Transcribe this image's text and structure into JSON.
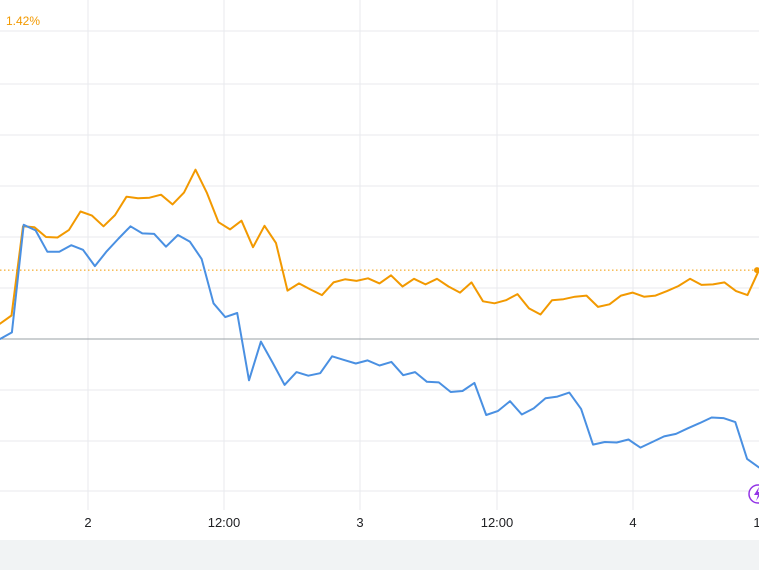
{
  "chart_data": {
    "type": "line",
    "top_value_label": "1.42%",
    "x_ticks": [
      "2",
      "12:00",
      "3",
      "12:00",
      "4",
      "1"
    ],
    "baseline_value": 0,
    "grid": true,
    "colors": {
      "orange": "#F29900",
      "blue": "#4A90E2",
      "grid": "#E8EAED",
      "baseline": "#9AA0A6",
      "marker": "#9334E6"
    },
    "marker_icon": "event-marker-icon",
    "series": [
      {
        "color": "#F29900",
        "values": [
          0.3,
          0.46,
          2.21,
          2.19,
          2.0,
          1.99,
          2.14,
          2.5,
          2.42,
          2.21,
          2.43,
          2.79,
          2.76,
          2.77,
          2.83,
          2.64,
          2.87,
          3.32,
          2.86,
          2.29,
          2.15,
          2.32,
          1.8,
          2.22,
          1.88,
          0.95,
          1.09,
          0.97,
          0.86,
          1.11,
          1.17,
          1.14,
          1.19,
          1.09,
          1.25,
          1.03,
          1.18,
          1.07,
          1.18,
          1.03,
          0.91,
          1.11,
          0.74,
          0.7,
          0.76,
          0.88,
          0.6,
          0.48,
          0.76,
          0.78,
          0.83,
          0.85,
          0.63,
          0.68,
          0.85,
          0.91,
          0.83,
          0.85,
          0.94,
          1.04,
          1.18,
          1.06,
          1.07,
          1.11,
          0.94,
          0.86,
          1.35
        ]
      },
      {
        "color": "#4A90E2",
        "values": [
          0.0,
          0.13,
          2.24,
          2.13,
          1.71,
          1.71,
          1.84,
          1.75,
          1.43,
          1.72,
          1.97,
          2.21,
          2.07,
          2.06,
          1.81,
          2.04,
          1.91,
          1.57,
          0.7,
          0.43,
          0.51,
          -0.81,
          -0.05,
          -0.47,
          -0.9,
          -0.65,
          -0.72,
          -0.67,
          -0.34,
          -0.41,
          -0.48,
          -0.42,
          -0.52,
          -0.45,
          -0.71,
          -0.65,
          -0.84,
          -0.85,
          -1.04,
          -1.02,
          -0.86,
          -1.49,
          -1.41,
          -1.22,
          -1.48,
          -1.36,
          -1.16,
          -1.13,
          -1.05,
          -1.37,
          -2.07,
          -2.02,
          -2.03,
          -1.97,
          -2.13,
          -2.02,
          -1.91,
          -1.86,
          -1.75,
          -1.65,
          -1.54,
          -1.55,
          -1.63,
          -2.35,
          -2.52
        ]
      }
    ]
  }
}
